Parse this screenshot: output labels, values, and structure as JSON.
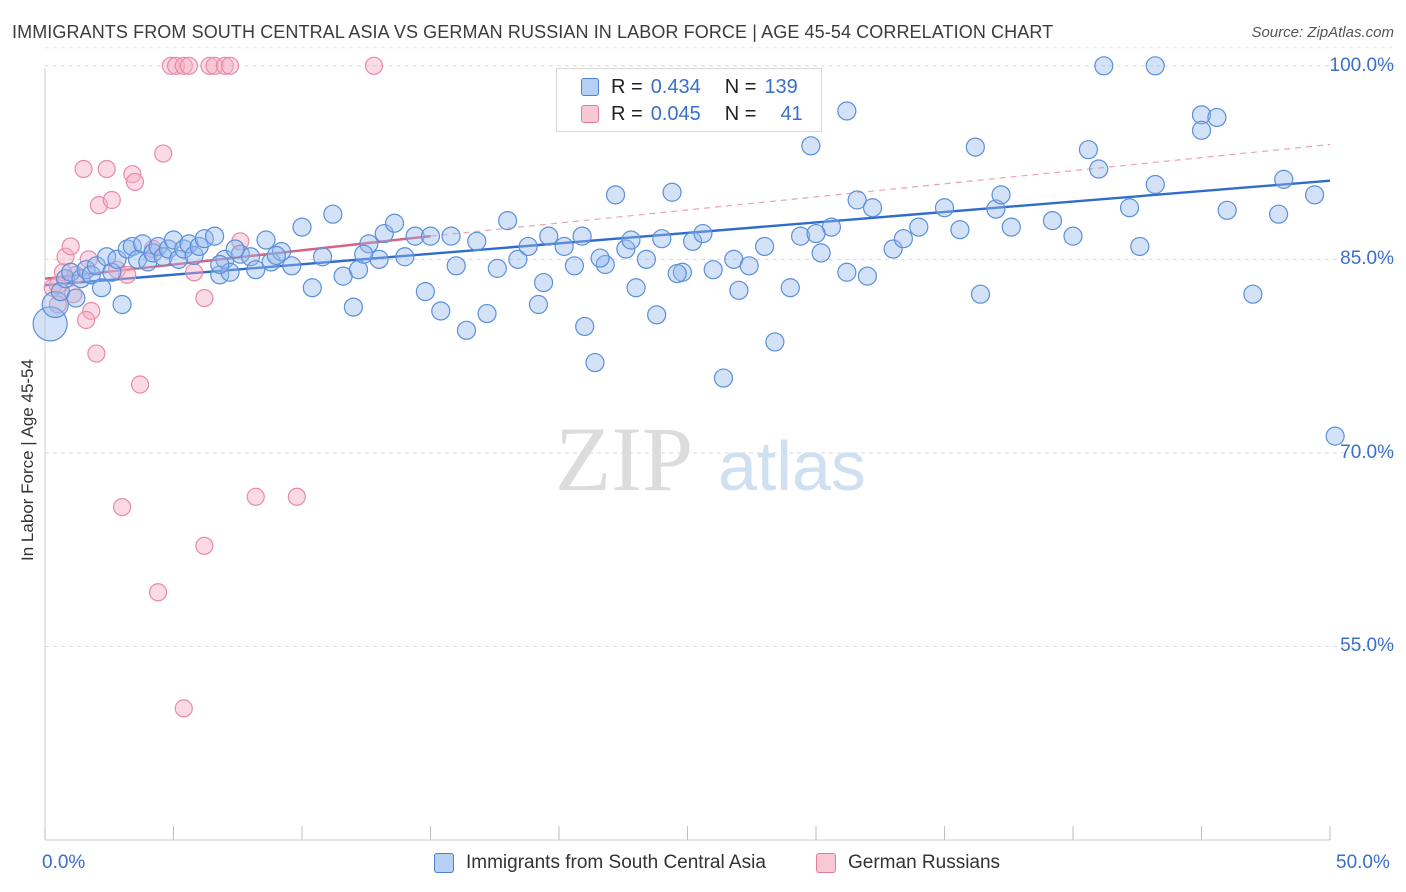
{
  "title": "IMMIGRANTS FROM SOUTH CENTRAL ASIA VS GERMAN RUSSIAN IN LABOR FORCE | AGE 45-54 CORRELATION CHART",
  "source": "Source: ZipAtlas.com",
  "watermark": {
    "zip": "ZIP",
    "atlas": "atlas"
  },
  "colors": {
    "blue": "#3a74d1",
    "blue_fill": "#a9c6ee",
    "pink": "#e0728f",
    "pink_fill": "#f4b9ca",
    "axis_label": "#3a6fc9"
  },
  "legend": {
    "rows": [
      {
        "r_label": "R =",
        "r_value": "0.434",
        "n_label": "N =",
        "n_value": "139"
      },
      {
        "r_label": "R =",
        "r_value": "0.045",
        "n_label": "N =",
        "n_value": "41"
      }
    ]
  },
  "chart_data": {
    "type": "scatter",
    "title": "IMMIGRANTS FROM SOUTH CENTRAL ASIA VS GERMAN RUSSIAN IN LABOR FORCE | AGE 45-54 CORRELATION CHART",
    "xlabel": "",
    "ylabel": "In Labor Force | Age 45-54",
    "xlim": [
      0,
      50
    ],
    "ylim": [
      40,
      102
    ],
    "x_tick_labels": [
      "0.0%",
      "50.0%"
    ],
    "y_ticks": [
      55,
      70,
      85,
      100
    ],
    "y_tick_labels": [
      "55.0%",
      "70.0%",
      "85.0%",
      "100.0%"
    ],
    "grid": "horizontal dashed",
    "legend_position": "top-center and bottom",
    "series": [
      {
        "name": "Immigrants from South Central Asia",
        "color": "#3a74d1",
        "trend": {
          "x": [
            0,
            50
          ],
          "y": [
            83.0,
            91.1
          ]
        },
        "points": [
          [
            0.2,
            80.0
          ],
          [
            0.4,
            81.5
          ],
          [
            0.6,
            82.5
          ],
          [
            0.8,
            83.5
          ],
          [
            1.0,
            84.0
          ],
          [
            1.2,
            82.0
          ],
          [
            1.4,
            83.5
          ],
          [
            1.6,
            84.2
          ],
          [
            1.8,
            83.8
          ],
          [
            2.0,
            84.5
          ],
          [
            2.2,
            82.8
          ],
          [
            2.4,
            85.2
          ],
          [
            2.6,
            84.0
          ],
          [
            2.8,
            85.0
          ],
          [
            3.0,
            81.5
          ],
          [
            3.2,
            85.8
          ],
          [
            3.4,
            86.0
          ],
          [
            3.6,
            85.0
          ],
          [
            3.8,
            86.2
          ],
          [
            4.0,
            84.8
          ],
          [
            4.2,
            85.5
          ],
          [
            4.4,
            86.0
          ],
          [
            4.6,
            85.2
          ],
          [
            4.8,
            85.8
          ],
          [
            5.0,
            86.5
          ],
          [
            5.2,
            85.0
          ],
          [
            5.4,
            85.8
          ],
          [
            5.6,
            86.2
          ],
          [
            5.8,
            85.3
          ],
          [
            6.0,
            86.0
          ],
          [
            6.2,
            86.6
          ],
          [
            6.6,
            86.8
          ],
          [
            6.8,
            83.8
          ],
          [
            7.0,
            85.0
          ],
          [
            7.2,
            84.0
          ],
          [
            7.6,
            85.4
          ],
          [
            8.0,
            85.2
          ],
          [
            8.2,
            84.2
          ],
          [
            8.6,
            86.5
          ],
          [
            8.8,
            84.8
          ],
          [
            9.2,
            85.6
          ],
          [
            9.6,
            84.5
          ],
          [
            10.0,
            87.5
          ],
          [
            10.4,
            82.8
          ],
          [
            10.8,
            85.2
          ],
          [
            11.2,
            88.5
          ],
          [
            11.6,
            83.7
          ],
          [
            12.0,
            81.3
          ],
          [
            12.2,
            84.2
          ],
          [
            12.6,
            86.2
          ],
          [
            13.0,
            85.0
          ],
          [
            13.2,
            87.0
          ],
          [
            13.6,
            87.8
          ],
          [
            14.0,
            85.2
          ],
          [
            14.4,
            86.8
          ],
          [
            14.8,
            82.5
          ],
          [
            15.0,
            86.8
          ],
          [
            15.4,
            81.0
          ],
          [
            15.8,
            86.8
          ],
          [
            16.0,
            84.5
          ],
          [
            16.4,
            79.5
          ],
          [
            16.8,
            86.4
          ],
          [
            17.2,
            80.8
          ],
          [
            17.6,
            84.3
          ],
          [
            18.0,
            88.0
          ],
          [
            18.4,
            85.0
          ],
          [
            18.8,
            86.0
          ],
          [
            19.2,
            81.5
          ],
          [
            19.4,
            83.2
          ],
          [
            19.6,
            86.8
          ],
          [
            20.2,
            86.0
          ],
          [
            20.6,
            84.5
          ],
          [
            21.0,
            79.8
          ],
          [
            21.4,
            77.0
          ],
          [
            21.8,
            84.6
          ],
          [
            22.2,
            90.0
          ],
          [
            22.6,
            85.8
          ],
          [
            23.0,
            82.8
          ],
          [
            23.4,
            85.0
          ],
          [
            23.8,
            80.7
          ],
          [
            24.0,
            86.6
          ],
          [
            24.4,
            90.2
          ],
          [
            24.8,
            84.0
          ],
          [
            25.2,
            86.4
          ],
          [
            25.6,
            87.0
          ],
          [
            26.0,
            84.2
          ],
          [
            26.4,
            75.8
          ],
          [
            26.8,
            85.0
          ],
          [
            27.0,
            82.6
          ],
          [
            27.4,
            84.5
          ],
          [
            28.0,
            86.0
          ],
          [
            28.4,
            78.6
          ],
          [
            29.0,
            82.8
          ],
          [
            29.4,
            86.8
          ],
          [
            29.8,
            93.8
          ],
          [
            30.2,
            85.5
          ],
          [
            30.6,
            87.5
          ],
          [
            31.2,
            84.0
          ],
          [
            31.6,
            89.6
          ],
          [
            32.0,
            83.7
          ],
          [
            32.2,
            89.0
          ],
          [
            33.0,
            85.8
          ],
          [
            34.0,
            87.5
          ],
          [
            35.0,
            89.0
          ],
          [
            35.6,
            87.3
          ],
          [
            36.2,
            93.7
          ],
          [
            37.0,
            88.9
          ],
          [
            37.6,
            87.5
          ],
          [
            39.2,
            88.0
          ],
          [
            40.6,
            93.5
          ],
          [
            41.0,
            92.0
          ],
          [
            42.2,
            89.0
          ],
          [
            42.6,
            86.0
          ],
          [
            43.2,
            90.8
          ],
          [
            43.2,
            100.0
          ],
          [
            41.2,
            100.0
          ],
          [
            45.0,
            96.2
          ],
          [
            45.0,
            95.0
          ],
          [
            45.6,
            96.0
          ],
          [
            46.0,
            88.8
          ],
          [
            47.0,
            82.3
          ],
          [
            48.2,
            91.2
          ],
          [
            49.4,
            90.0
          ],
          [
            50.2,
            71.3
          ],
          [
            48.0,
            88.5
          ],
          [
            36.4,
            82.3
          ],
          [
            30.0,
            87.0
          ],
          [
            22.8,
            86.5
          ],
          [
            20.9,
            86.8
          ],
          [
            31.2,
            96.5
          ],
          [
            6.8,
            84.6
          ],
          [
            9.0,
            85.3
          ],
          [
            7.4,
            85.8
          ],
          [
            12.4,
            85.4
          ],
          [
            33.4,
            86.6
          ],
          [
            40.0,
            86.8
          ],
          [
            21.6,
            85.1
          ],
          [
            24.6,
            83.9
          ],
          [
            37.2,
            90.0
          ]
        ]
      },
      {
        "name": "German Russians",
        "color": "#e0728f",
        "trend": {
          "x": [
            0,
            15
          ],
          "y": [
            83.5,
            86.8
          ]
        },
        "trend_extended": {
          "x": [
            15,
            50
          ],
          "y": [
            86.8,
            93.9
          ]
        },
        "points": [
          [
            0.3,
            82.8
          ],
          [
            0.5,
            81.5
          ],
          [
            0.7,
            84.0
          ],
          [
            0.8,
            85.2
          ],
          [
            1.0,
            86.0
          ],
          [
            1.1,
            82.3
          ],
          [
            1.2,
            83.8
          ],
          [
            1.5,
            92.0
          ],
          [
            1.7,
            85.0
          ],
          [
            1.8,
            81.0
          ],
          [
            2.0,
            77.7
          ],
          [
            2.1,
            89.2
          ],
          [
            2.4,
            92.0
          ],
          [
            2.6,
            89.6
          ],
          [
            2.8,
            84.2
          ],
          [
            3.0,
            65.8
          ],
          [
            3.2,
            83.8
          ],
          [
            3.4,
            91.6
          ],
          [
            3.5,
            91.0
          ],
          [
            3.7,
            75.3
          ],
          [
            4.2,
            85.8
          ],
          [
            4.4,
            59.2
          ],
          [
            4.6,
            93.2
          ],
          [
            4.9,
            100.0
          ],
          [
            5.1,
            100.0
          ],
          [
            5.4,
            100.0
          ],
          [
            5.6,
            100.0
          ],
          [
            5.8,
            84.0
          ],
          [
            6.2,
            82.0
          ],
          [
            6.4,
            100.0
          ],
          [
            6.6,
            100.0
          ],
          [
            7.0,
            100.0
          ],
          [
            7.2,
            100.0
          ],
          [
            7.6,
            86.4
          ],
          [
            8.2,
            66.6
          ],
          [
            9.8,
            66.6
          ],
          [
            6.2,
            62.8
          ],
          [
            5.4,
            50.2
          ],
          [
            12.8,
            100.0
          ],
          [
            0.5,
            83.0
          ],
          [
            1.6,
            80.3
          ]
        ]
      }
    ]
  },
  "bottom_legend": [
    "Immigrants from South Central Asia",
    "German Russians"
  ]
}
